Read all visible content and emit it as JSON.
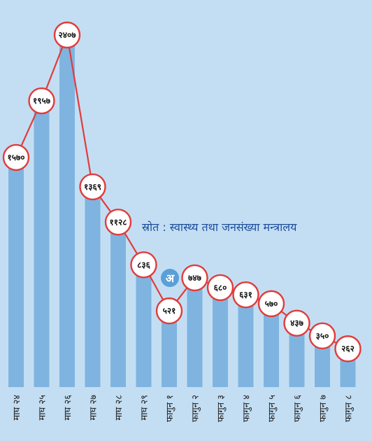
{
  "chart_data": {
    "type": "bar",
    "title": "",
    "xlabel": "",
    "ylabel": "",
    "categories": [
      "माघ २४",
      "माघ २५",
      "माघ २६",
      "माघ २७",
      "माघ २८",
      "माघ २९",
      "फागुन १",
      "फागुन २",
      "फागुन ३",
      "फागुन ४",
      "फागुन ५",
      "फागुन ६",
      "फागुन ७",
      "फागुन ८"
    ],
    "values": [
      1570,
      1957,
      2407,
      1369,
      1128,
      836,
      521,
      747,
      680,
      631,
      570,
      437,
      350,
      262
    ],
    "value_labels": [
      "१५७०",
      "१९५७",
      "२४०७",
      "१३६९",
      "११२८",
      "८३६",
      "५२१",
      "७४७",
      "६८०",
      "६३१",
      "५७०",
      "४३७",
      "३५०",
      "२६२"
    ],
    "ylim": [
      0,
      2600
    ],
    "grid": false,
    "legend": "none",
    "source": "स्रोत : स्वास्थ्य तथा जनसंख्या मन्त्रालय",
    "logo_text": "अ",
    "colors": {
      "bar": "#7fb4e0",
      "line": "#e23b3b",
      "background": "#c3def3",
      "source_text": "#1e4e9c"
    }
  }
}
